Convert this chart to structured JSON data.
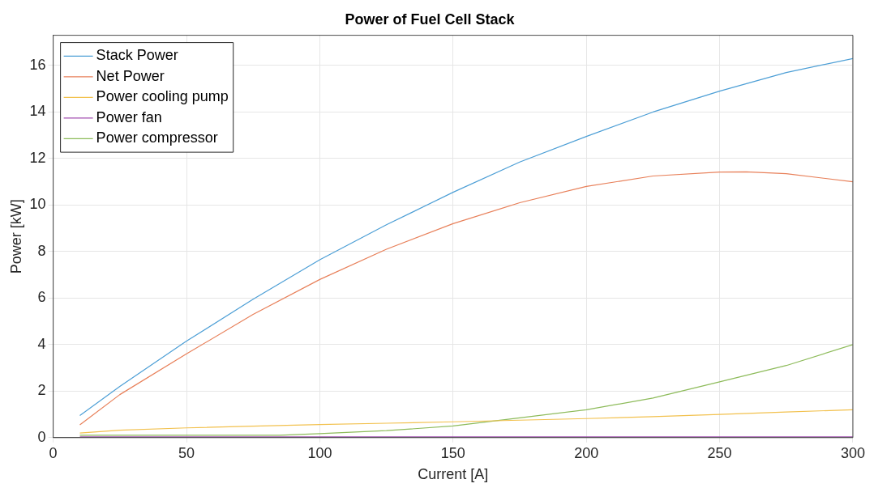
{
  "chart_data": {
    "type": "line",
    "title": "Power of Fuel Cell Stack",
    "xlabel": "Current [A]",
    "ylabel": "Power [kW]",
    "xlim": [
      0,
      300
    ],
    "xticks": [
      0,
      50,
      100,
      150,
      200,
      250,
      300
    ],
    "ylim": [
      0,
      17.3
    ],
    "yticks": [
      0,
      2,
      4,
      6,
      8,
      10,
      12,
      14,
      16
    ],
    "grid": true,
    "legend": "top left",
    "marker": "none",
    "line_style": "solid",
    "x": [
      10,
      25,
      50,
      75,
      100,
      125,
      150,
      175,
      200,
      225,
      250,
      275,
      300
    ],
    "series": [
      {
        "name": "Stack Power",
        "color": "#4d9fd6",
        "values": [
          0.95,
          2.2,
          4.15,
          5.95,
          7.65,
          9.15,
          10.55,
          11.85,
          12.95,
          14.0,
          14.9,
          15.7,
          16.3
        ]
      },
      {
        "name": "Net Power",
        "color": "#e8805a",
        "x": [
          10,
          25,
          50,
          75,
          100,
          125,
          150,
          175,
          200,
          225,
          250,
          260,
          275,
          300
        ],
        "values": [
          0.55,
          1.85,
          3.6,
          5.3,
          6.8,
          8.1,
          9.2,
          10.1,
          10.8,
          11.25,
          11.42,
          11.43,
          11.35,
          11.0
        ]
      },
      {
        "name": "Power cooling pump",
        "color": "#f2c14e",
        "values": [
          0.2,
          0.32,
          0.42,
          0.49,
          0.56,
          0.62,
          0.68,
          0.75,
          0.82,
          0.9,
          1.0,
          1.1,
          1.2
        ]
      },
      {
        "name": "Power fan",
        "color": "#a24fb0",
        "values": [
          0.03,
          0.03,
          0.03,
          0.03,
          0.03,
          0.03,
          0.03,
          0.03,
          0.03,
          0.03,
          0.03,
          0.03,
          0.03
        ]
      },
      {
        "name": "Power compressor",
        "color": "#8dbb5a",
        "x": [
          10,
          50,
          85,
          100,
          125,
          150,
          175,
          200,
          225,
          250,
          275,
          300
        ],
        "values": [
          0.1,
          0.1,
          0.1,
          0.17,
          0.3,
          0.5,
          0.85,
          1.2,
          1.7,
          2.4,
          3.1,
          4.0
        ]
      }
    ]
  }
}
